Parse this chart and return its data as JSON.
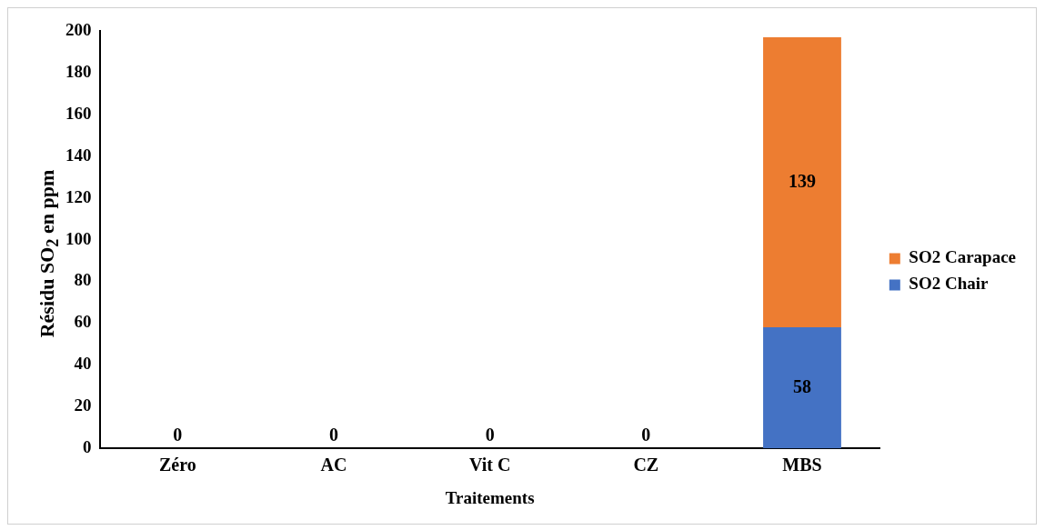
{
  "chart_data": {
    "type": "bar",
    "stacked": true,
    "xlabel": "Traitements",
    "ylabel": "Résidu SO$_{2}$ en ppm",
    "categories": [
      "Zéro",
      "AC",
      "Vit C",
      "CZ",
      "MBS"
    ],
    "series": [
      {
        "name": "SO2 Chair",
        "color": "#4472c4",
        "values": [
          0,
          0,
          0,
          0,
          58
        ],
        "value_labels": [
          "0",
          "0",
          "0",
          "0",
          "58"
        ]
      },
      {
        "name": "SO2 Carapace",
        "color": "#ed7d31",
        "values": [
          0,
          0,
          0,
          0,
          139
        ],
        "value_labels": [
          null,
          null,
          null,
          null,
          "139"
        ]
      }
    ],
    "ylim": [
      0,
      200
    ],
    "yticks": [
      0,
      20,
      40,
      60,
      80,
      100,
      120,
      140,
      160,
      180,
      200
    ],
    "grid": false,
    "legend": "right"
  }
}
